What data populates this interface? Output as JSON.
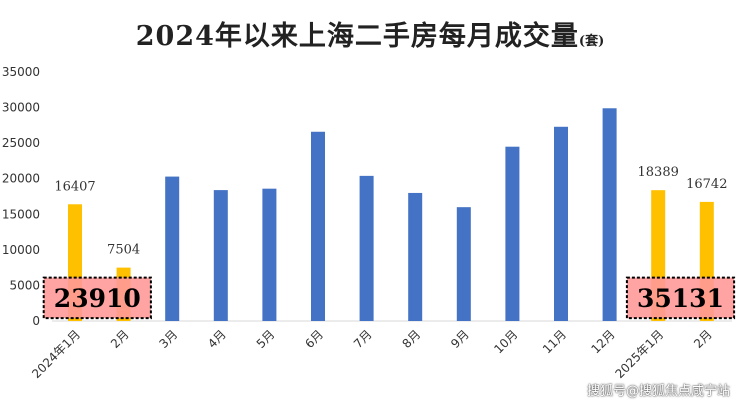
{
  "chart_data": {
    "type": "bar",
    "title": "2024年以来上海二手房每月成交量",
    "title_unit": "(套)",
    "categories": [
      "2024年1月",
      "2月",
      "3月",
      "4月",
      "5月",
      "6月",
      "7月",
      "8月",
      "9月",
      "10月",
      "11月",
      "12月",
      "2025年1月",
      "2月"
    ],
    "values": [
      16407,
      7504,
      20300,
      18400,
      18600,
      26600,
      20400,
      18000,
      16000,
      24500,
      27300,
      29900,
      18389,
      16742
    ],
    "bar_colors": [
      "#FFC000",
      "#FFC000",
      "#4472C4",
      "#4472C4",
      "#4472C4",
      "#4472C4",
      "#4472C4",
      "#4472C4",
      "#4472C4",
      "#4472C4",
      "#4472C4",
      "#4472C4",
      "#FFC000",
      "#FFC000"
    ],
    "data_labels": [
      {
        "index": 0,
        "text": "16407"
      },
      {
        "index": 1,
        "text": "7504"
      },
      {
        "index": 12,
        "text": "18389"
      },
      {
        "index": 13,
        "text": "16742"
      }
    ],
    "ylim": [
      0,
      35000
    ],
    "yticks": [
      0,
      5000,
      10000,
      15000,
      20000,
      25000,
      30000,
      35000
    ],
    "grid": false,
    "annotations": [
      {
        "text": "23910",
        "covers": [
          0,
          1
        ]
      },
      {
        "text": "35131",
        "covers": [
          12,
          13
        ]
      }
    ]
  },
  "watermark": "搜狐号@搜狐焦点咸宁站"
}
